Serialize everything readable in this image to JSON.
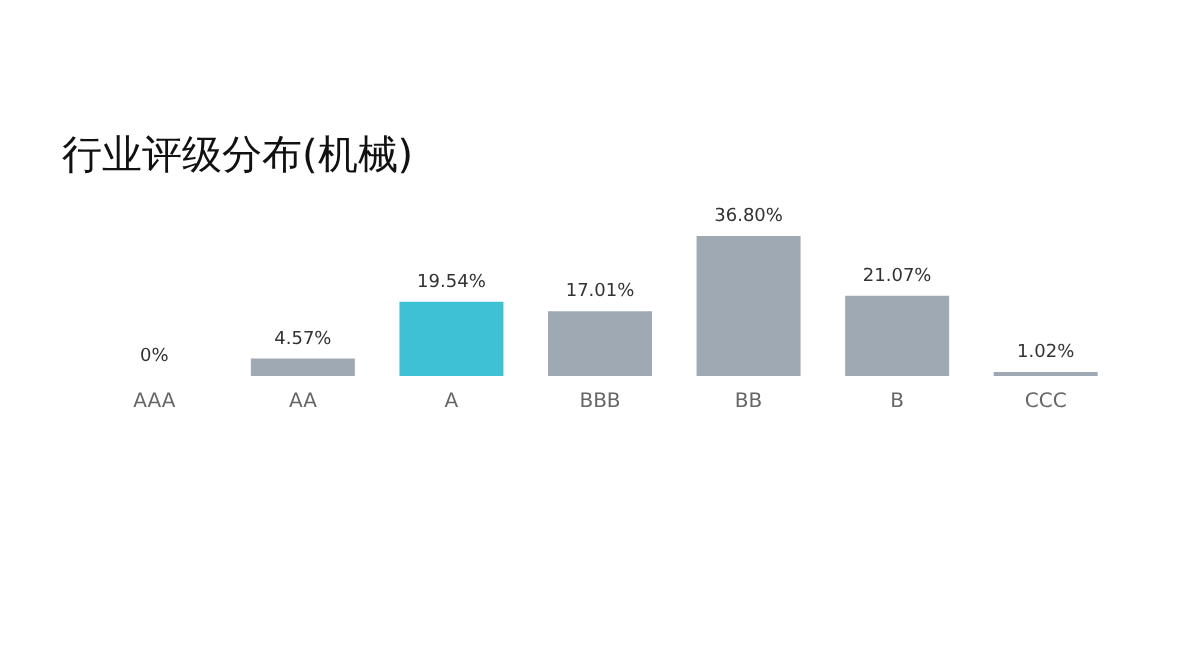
{
  "chart_data": {
    "type": "bar",
    "title": "行业评级分布(机械)",
    "categories": [
      "AAA",
      "AA",
      "A",
      "BBB",
      "BB",
      "B",
      "CCC"
    ],
    "values": [
      0,
      4.57,
      19.54,
      17.01,
      36.8,
      21.07,
      1.02
    ],
    "value_labels": [
      "0%",
      "4.57%",
      "19.54%",
      "17.01%",
      "36.80%",
      "21.07%",
      "1.02%"
    ],
    "colors": [
      "#9ea9b4",
      "#9ea9b4",
      "#3ec1d3",
      "#9ea9b4",
      "#9ea9b4",
      "#9ea9b4",
      "#9ea9b4"
    ]
  }
}
